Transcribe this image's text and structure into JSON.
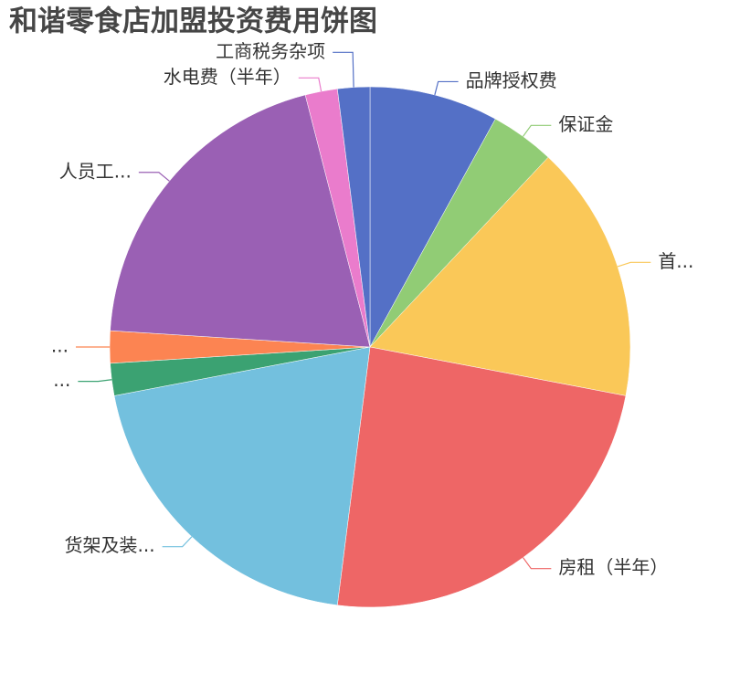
{
  "chart_data": {
    "type": "pie",
    "title": "和谐零食店加盟投资费用饼图",
    "categories": [
      "品牌授权费",
      "保证金",
      "首...",
      "房租（半年）",
      "货架及装...",
      "...",
      "...",
      "人员工...",
      "水电费（半年）",
      "工商税务杂项"
    ],
    "values": [
      8,
      4,
      16,
      24,
      20,
      2,
      2,
      20,
      2,
      2
    ],
    "colors": [
      "#5470c6",
      "#91cc75",
      "#fac858",
      "#ee6666",
      "#73c0de",
      "#3ba272",
      "#fc8452",
      "#9a60b4",
      "#ea7ccc",
      "#5470c6"
    ]
  }
}
